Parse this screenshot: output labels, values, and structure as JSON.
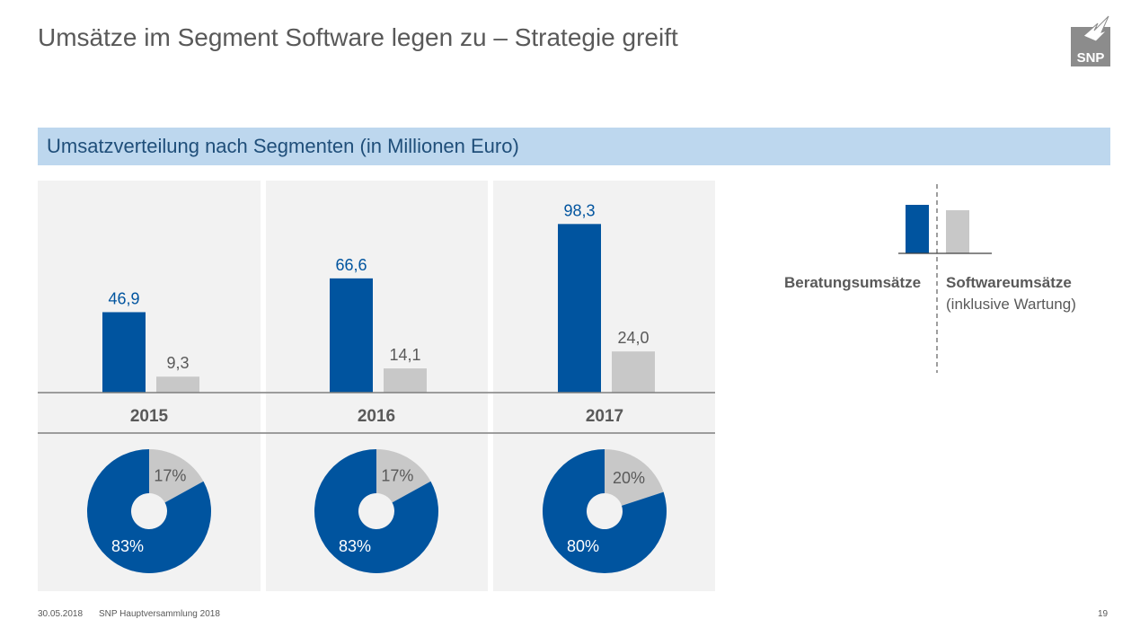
{
  "slide": {
    "title": "Umsätze im Segment Software legen zu – Strategie greift",
    "section_title": "Umsatzverteilung nach Segmenten (in Millionen Euro)",
    "logo_text": "SNP"
  },
  "colors": {
    "blue": "#00549f",
    "grey": "#c8c8c8",
    "panel": "#f2f2f2",
    "band": "#bdd7ee"
  },
  "legend": {
    "left_label": "Beratungsumsätze",
    "right_label": "Softwareumsätze",
    "right_sublabel": "(inklusive Wartung)"
  },
  "chart_data": [
    {
      "type": "bar",
      "title": "Umsatzverteilung nach Segmenten (in Millionen Euro)",
      "categories": [
        "2015",
        "2016",
        "2017"
      ],
      "series": [
        {
          "name": "Beratungsumsätze",
          "values": [
            46.9,
            66.6,
            98.3
          ],
          "labels": [
            "46,9",
            "66,6",
            "98,3"
          ]
        },
        {
          "name": "Softwareumsätze (inklusive Wartung)",
          "values": [
            9.3,
            14.1,
            24.0
          ],
          "labels": [
            "9,3",
            "14,1",
            "24,0"
          ]
        }
      ],
      "xlabel": "",
      "ylabel": "",
      "ylim": [
        0,
        110
      ]
    },
    {
      "type": "pie",
      "style": "donut",
      "charts": [
        {
          "year": "2015",
          "slices": [
            {
              "name": "Beratungsumsätze",
              "value": 83,
              "label": "83%"
            },
            {
              "name": "Softwareumsätze",
              "value": 17,
              "label": "17%"
            }
          ]
        },
        {
          "year": "2016",
          "slices": [
            {
              "name": "Beratungsumsätze",
              "value": 83,
              "label": "83%"
            },
            {
              "name": "Softwareumsätze",
              "value": 17,
              "label": "17%"
            }
          ]
        },
        {
          "year": "2017",
          "slices": [
            {
              "name": "Beratungsumsätze",
              "value": 80,
              "label": "80%"
            },
            {
              "name": "Softwareumsätze",
              "value": 20,
              "label": "20%"
            }
          ]
        }
      ]
    }
  ],
  "footer": {
    "date": "30.05.2018",
    "event": "SNP Hauptversammlung 2018",
    "page": "19"
  }
}
